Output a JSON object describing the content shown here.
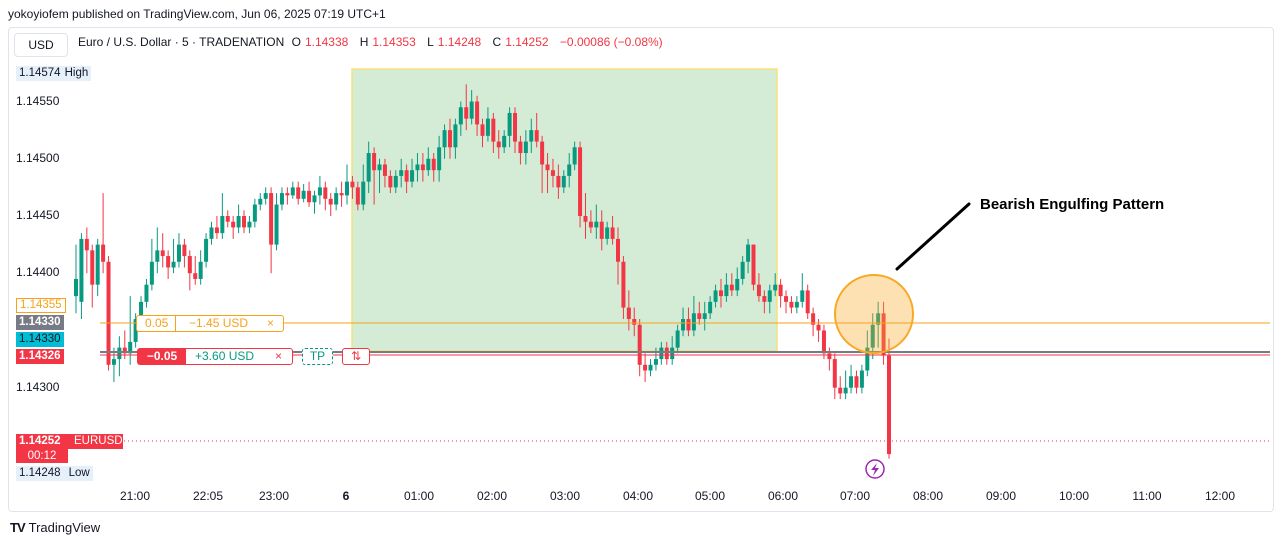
{
  "header": {
    "published": "yokoyiofem published on TradingView.com, Jun 06, 2025 07:19 UTC+1"
  },
  "currency_button": "USD",
  "legend": {
    "symbol": "Euro / U.S. Dollar · 5 · TRADENATION",
    "o_key": "O",
    "o_val": "1.14338",
    "h_key": "H",
    "h_val": "1.14353",
    "l_key": "L",
    "l_val": "1.14248",
    "c_key": "C",
    "c_val": "1.14252",
    "change": "−0.00086 (−0.08%)"
  },
  "price_axis": {
    "labels": [
      "1.14550",
      "1.14500",
      "1.14450",
      "1.14400",
      "1.14300"
    ],
    "high_value": "1.14574",
    "high_label": "High",
    "low_value": "1.14248",
    "low_label": "Low",
    "tp_price": "1.14355",
    "mid1": "1.14330",
    "mid2": "1.14330",
    "entry_price": "1.14326",
    "last_price": "1.14252",
    "last_symbol": "EURUSD",
    "countdown": "00:12"
  },
  "time_axis": [
    "21:00",
    "22:05",
    "23:00",
    "6",
    "01:00",
    "02:00",
    "03:00",
    "04:00",
    "05:00",
    "06:00",
    "07:00",
    "08:00",
    "09:00",
    "10:00",
    "11:00",
    "12:00"
  ],
  "orders": {
    "tp_qty": "0.05",
    "tp_pnl": "−1.45 USD",
    "tp_close": "×",
    "pos_qty": "−0.05",
    "pos_pnl": "+3.60 USD",
    "pos_close": "×",
    "tp_button": "TP",
    "reverse_icon": "⇅"
  },
  "annotation": "Bearish Engulfing Pattern",
  "footer": {
    "brand": "TradingView"
  },
  "colors": {
    "bull": "#089981",
    "bear": "#f23645",
    "range_fill": "#d4ecd5",
    "range_border": "#f5e27a",
    "tp_line": "#f7a21b",
    "circle": "#f9a825"
  },
  "chart_data": {
    "type": "candlestick",
    "symbol": "EURUSD",
    "interval": "5",
    "ylim": [
      1.14225,
      1.14605
    ],
    "candles": [
      [
        1.1439,
        1.14405,
        1.14375,
        1.14435
      ],
      [
        1.14385,
        1.1444,
        1.1437,
        1.14445
      ],
      [
        1.1444,
        1.1443,
        1.1441,
        1.1445
      ],
      [
        1.1443,
        1.144,
        1.1438,
        1.14435
      ],
      [
        1.144,
        1.14435,
        1.1439,
        1.1444
      ],
      [
        1.14435,
        1.1442,
        1.1441,
        1.1448
      ],
      [
        1.1442,
        1.1433,
        1.14325,
        1.14425
      ],
      [
        1.1433,
        1.14335,
        1.14315,
        1.14345
      ],
      [
        1.14335,
        1.14345,
        1.1432,
        1.14355
      ],
      [
        1.14345,
        1.1434,
        1.14335,
        1.1436
      ],
      [
        1.1434,
        1.1435,
        1.1433,
        1.1439
      ],
      [
        1.1435,
        1.1437,
        1.14345,
        1.14375
      ],
      [
        1.1437,
        1.14385,
        1.1436,
        1.1439
      ],
      [
        1.14385,
        1.144,
        1.1438,
        1.14405
      ],
      [
        1.144,
        1.1442,
        1.14395,
        1.1444
      ],
      [
        1.1442,
        1.1443,
        1.1441,
        1.1445
      ],
      [
        1.1443,
        1.14425,
        1.14415,
        1.14445
      ],
      [
        1.14425,
        1.14415,
        1.14405,
        1.1443
      ],
      [
        1.14415,
        1.1442,
        1.1441,
        1.1444
      ],
      [
        1.1442,
        1.14435,
        1.14415,
        1.14445
      ],
      [
        1.14435,
        1.14425,
        1.14415,
        1.1444
      ],
      [
        1.14425,
        1.1441,
        1.14395,
        1.1443
      ],
      [
        1.1441,
        1.14405,
        1.144,
        1.14425
      ],
      [
        1.14405,
        1.1442,
        1.144,
        1.1443
      ],
      [
        1.1442,
        1.1444,
        1.14415,
        1.14445
      ],
      [
        1.1444,
        1.1445,
        1.14435,
        1.14455
      ],
      [
        1.1445,
        1.14445,
        1.1444,
        1.1446
      ],
      [
        1.14445,
        1.1446,
        1.1444,
        1.1448
      ],
      [
        1.1446,
        1.14455,
        1.1445,
        1.14465
      ],
      [
        1.14455,
        1.1445,
        1.1444,
        1.1446
      ],
      [
        1.1445,
        1.1446,
        1.14445,
        1.1447
      ],
      [
        1.1446,
        1.1445,
        1.14445,
        1.14465
      ],
      [
        1.1445,
        1.14455,
        1.14445,
        1.1446
      ],
      [
        1.14455,
        1.1447,
        1.1445,
        1.14475
      ],
      [
        1.1447,
        1.14475,
        1.14465,
        1.1448
      ],
      [
        1.14475,
        1.1448,
        1.1447,
        1.14485
      ],
      [
        1.1448,
        1.14435,
        1.1441,
        1.14485
      ],
      [
        1.14435,
        1.1447,
        1.1443,
        1.1448
      ],
      [
        1.1447,
        1.1448,
        1.14465,
        1.14485
      ],
      [
        1.1448,
        1.14478,
        1.1447,
        1.14485
      ],
      [
        1.14478,
        1.14485,
        1.14475,
        1.1449
      ],
      [
        1.14485,
        1.14475,
        1.1447,
        1.1449
      ],
      [
        1.14475,
        1.14482,
        1.14472,
        1.14488
      ],
      [
        1.14482,
        1.14472,
        1.14468,
        1.1449
      ],
      [
        1.14472,
        1.14478,
        1.14462,
        1.14482
      ],
      [
        1.14478,
        1.14485,
        1.1447,
        1.14495
      ],
      [
        1.14485,
        1.14475,
        1.14465,
        1.1449
      ],
      [
        1.14475,
        1.1447,
        1.1446,
        1.1448
      ],
      [
        1.1447,
        1.1448,
        1.14465,
        1.14485
      ],
      [
        1.1448,
        1.14478,
        1.14468,
        1.1449
      ],
      [
        1.14478,
        1.1449,
        1.1447,
        1.14505
      ],
      [
        1.1449,
        1.14485,
        1.14475,
        1.14495
      ],
      [
        1.14485,
        1.1447,
        1.14465,
        1.1449
      ],
      [
        1.1447,
        1.1449,
        1.14465,
        1.14505
      ],
      [
        1.1449,
        1.14515,
        1.1448,
        1.14525
      ],
      [
        1.14515,
        1.145,
        1.1447,
        1.1452
      ],
      [
        1.145,
        1.14505,
        1.1448,
        1.1451
      ],
      [
        1.14505,
        1.14495,
        1.14485,
        1.1451
      ],
      [
        1.14495,
        1.14485,
        1.1448,
        1.145
      ],
      [
        1.14485,
        1.14495,
        1.1448,
        1.145
      ],
      [
        1.14495,
        1.145,
        1.14485,
        1.1451
      ],
      [
        1.145,
        1.1449,
        1.1448,
        1.14505
      ],
      [
        1.1449,
        1.145,
        1.14485,
        1.1451
      ],
      [
        1.145,
        1.14505,
        1.1449,
        1.14515
      ],
      [
        1.14505,
        1.145,
        1.1449,
        1.14515
      ],
      [
        1.145,
        1.1451,
        1.14495,
        1.1452
      ],
      [
        1.1451,
        1.145,
        1.1449,
        1.14515
      ],
      [
        1.145,
        1.1452,
        1.1449,
        1.1453
      ],
      [
        1.1452,
        1.14535,
        1.1451,
        1.1454
      ],
      [
        1.14535,
        1.1452,
        1.1451,
        1.14545
      ],
      [
        1.1452,
        1.1454,
        1.1451,
        1.14545
      ],
      [
        1.1454,
        1.14555,
        1.1453,
        1.1456
      ],
      [
        1.14555,
        1.14545,
        1.14535,
        1.14575
      ],
      [
        1.14545,
        1.1456,
        1.1454,
        1.1457
      ],
      [
        1.1456,
        1.1454,
        1.1453,
        1.14565
      ],
      [
        1.1454,
        1.1453,
        1.1452,
        1.14545
      ],
      [
        1.1453,
        1.14545,
        1.14525,
        1.14555
      ],
      [
        1.14545,
        1.14525,
        1.14515,
        1.1455
      ],
      [
        1.14525,
        1.1452,
        1.1451,
        1.14535
      ],
      [
        1.1452,
        1.1453,
        1.14515,
        1.14535
      ],
      [
        1.1453,
        1.1455,
        1.1452,
        1.14555
      ],
      [
        1.1455,
        1.14525,
        1.14515,
        1.14555
      ],
      [
        1.14525,
        1.14515,
        1.14505,
        1.1453
      ],
      [
        1.14515,
        1.14525,
        1.14505,
        1.14535
      ],
      [
        1.14525,
        1.14535,
        1.14515,
        1.14545
      ],
      [
        1.14535,
        1.14525,
        1.1452,
        1.1455
      ],
      [
        1.14525,
        1.14505,
        1.1448,
        1.1453
      ],
      [
        1.14505,
        1.145,
        1.1448,
        1.14515
      ],
      [
        1.145,
        1.14495,
        1.14485,
        1.1451
      ],
      [
        1.14495,
        1.14485,
        1.14475,
        1.14505
      ],
      [
        1.14485,
        1.14495,
        1.1448,
        1.145
      ],
      [
        1.14495,
        1.14505,
        1.14485,
        1.14515
      ],
      [
        1.14505,
        1.1452,
        1.145,
        1.14525
      ],
      [
        1.1452,
        1.1446,
        1.1445,
        1.14525
      ],
      [
        1.1446,
        1.14455,
        1.1444,
        1.1448
      ],
      [
        1.14455,
        1.1445,
        1.14445,
        1.14465
      ],
      [
        1.1445,
        1.14455,
        1.1444,
        1.1447
      ],
      [
        1.14455,
        1.1444,
        1.1443,
        1.14465
      ],
      [
        1.1444,
        1.1445,
        1.14435,
        1.14455
      ],
      [
        1.1445,
        1.1444,
        1.14435,
        1.1446
      ],
      [
        1.1444,
        1.1442,
        1.144,
        1.1445
      ],
      [
        1.1442,
        1.1438,
        1.1437,
        1.14425
      ],
      [
        1.1438,
        1.1437,
        1.1436,
        1.14395
      ],
      [
        1.1437,
        1.14365,
        1.14355,
        1.1438
      ],
      [
        1.14365,
        1.1433,
        1.1432,
        1.1437
      ],
      [
        1.1433,
        1.14325,
        1.14315,
        1.1434
      ],
      [
        1.14325,
        1.1433,
        1.1432,
        1.14335
      ],
      [
        1.1433,
        1.14335,
        1.14325,
        1.14345
      ],
      [
        1.14335,
        1.14345,
        1.1433,
        1.1435
      ],
      [
        1.14345,
        1.14335,
        1.1433,
        1.1435
      ],
      [
        1.14335,
        1.14345,
        1.1433,
        1.14355
      ],
      [
        1.14345,
        1.1436,
        1.1434,
        1.14365
      ],
      [
        1.1436,
        1.1437,
        1.14355,
        1.1438
      ],
      [
        1.1437,
        1.1436,
        1.14355,
        1.1438
      ],
      [
        1.1436,
        1.14375,
        1.14355,
        1.1439
      ],
      [
        1.14375,
        1.1437,
        1.14365,
        1.14385
      ],
      [
        1.1437,
        1.14375,
        1.1436,
        1.14385
      ],
      [
        1.14375,
        1.14385,
        1.1437,
        1.1439
      ],
      [
        1.14385,
        1.14395,
        1.1438,
        1.144
      ],
      [
        1.14395,
        1.1439,
        1.1438,
        1.14405
      ],
      [
        1.1439,
        1.144,
        1.14385,
        1.1441
      ],
      [
        1.144,
        1.14395,
        1.1439,
        1.1441
      ],
      [
        1.14395,
        1.14405,
        1.1439,
        1.14415
      ],
      [
        1.14405,
        1.1442,
        1.144,
        1.14425
      ],
      [
        1.1442,
        1.14435,
        1.1441,
        1.1444
      ],
      [
        1.14435,
        1.144,
        1.14395,
        1.14435
      ],
      [
        1.144,
        1.1439,
        1.14385,
        1.1441
      ],
      [
        1.1439,
        1.14385,
        1.14375,
        1.14395
      ],
      [
        1.14385,
        1.14395,
        1.14375,
        1.144
      ],
      [
        1.14395,
        1.144,
        1.1439,
        1.1441
      ],
      [
        1.144,
        1.1439,
        1.1438,
        1.14405
      ],
      [
        1.1439,
        1.14385,
        1.14375,
        1.14395
      ],
      [
        1.14385,
        1.1438,
        1.14375,
        1.1439
      ],
      [
        1.1438,
        1.14385,
        1.14375,
        1.1439
      ],
      [
        1.14385,
        1.14395,
        1.1438,
        1.1441
      ],
      [
        1.14395,
        1.14375,
        1.1437,
        1.144
      ],
      [
        1.14375,
        1.14365,
        1.14355,
        1.1438
      ],
      [
        1.14365,
        1.1436,
        1.1435,
        1.1437
      ],
      [
        1.1436,
        1.1434,
        1.14335,
        1.14365
      ],
      [
        1.1434,
        1.14335,
        1.14325,
        1.14345
      ],
      [
        1.14335,
        1.1431,
        1.143,
        1.1434
      ],
      [
        1.1431,
        1.14305,
        1.143,
        1.1432
      ],
      [
        1.14305,
        1.1431,
        1.143,
        1.14325
      ],
      [
        1.1431,
        1.1432,
        1.14305,
        1.1433
      ],
      [
        1.1432,
        1.1431,
        1.14305,
        1.14325
      ],
      [
        1.1431,
        1.14325,
        1.14305,
        1.1433
      ],
      [
        1.14325,
        1.14345,
        1.1432,
        1.1436
      ],
      [
        1.14345,
        1.14365,
        1.14335,
        1.14375
      ],
      [
        1.14365,
        1.14375,
        1.14345,
        1.14385
      ],
      [
        1.14375,
        1.14338,
        1.1433,
        1.14385
      ],
      [
        1.14338,
        1.14252,
        1.14248,
        1.14353
      ]
    ]
  }
}
